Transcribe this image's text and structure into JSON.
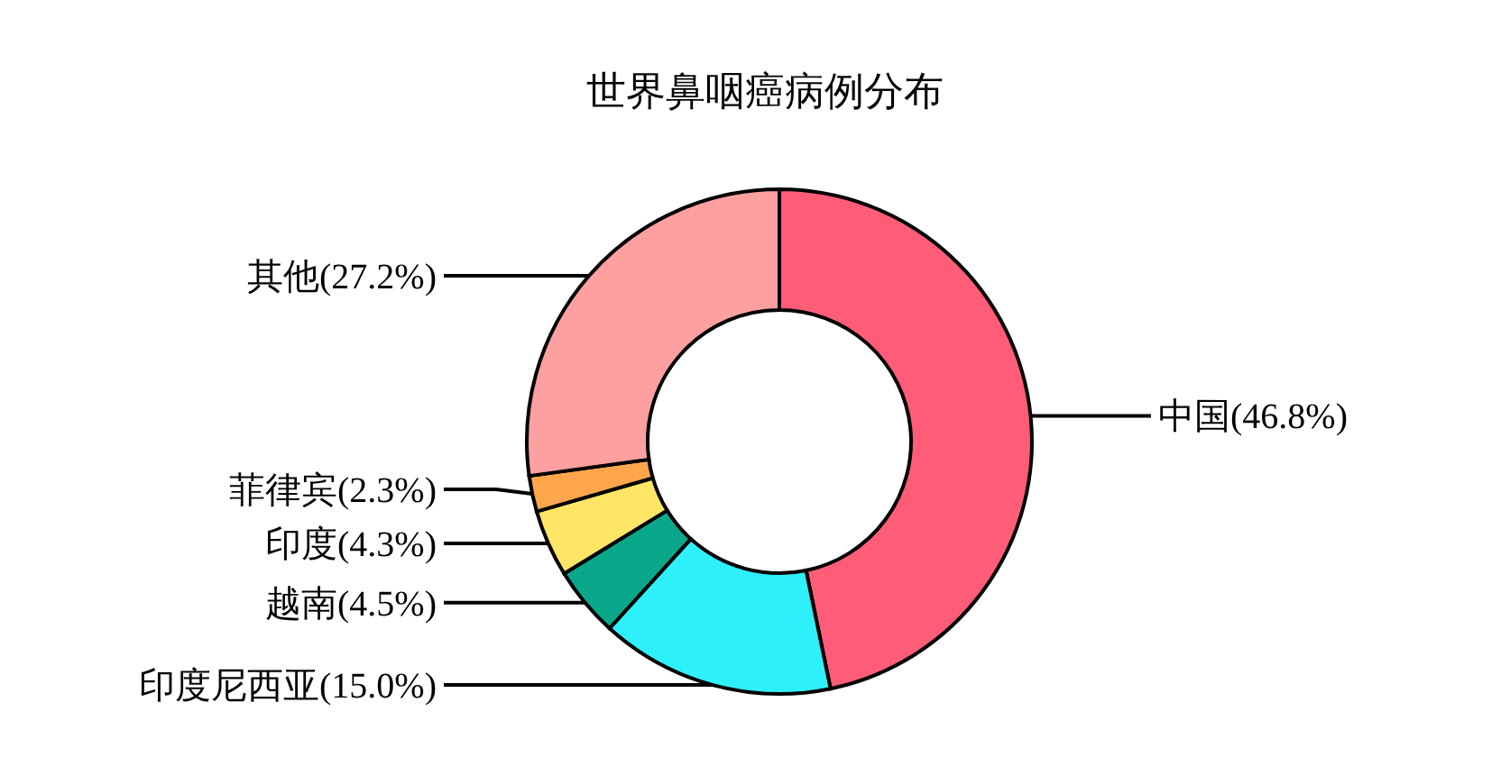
{
  "chart_data": {
    "type": "donut",
    "title": "世界鼻咽癌病例分布",
    "categories": [
      "中国",
      "印度尼西亚",
      "越南",
      "印度",
      "菲律宾",
      "其他"
    ],
    "values": [
      46.8,
      15.0,
      4.5,
      4.3,
      2.3,
      27.2
    ],
    "value_labels": [
      "(46.8%)",
      "(15.0%)",
      "(4.5%)",
      "(4.3%)",
      "(2.3%)",
      "(27.2%)"
    ],
    "colors": [
      "#ff5c77",
      "#2ef0fa",
      "#0aa88a",
      "#ffe566",
      "#ffa64d",
      "#ffa0a0"
    ],
    "legend": false
  }
}
